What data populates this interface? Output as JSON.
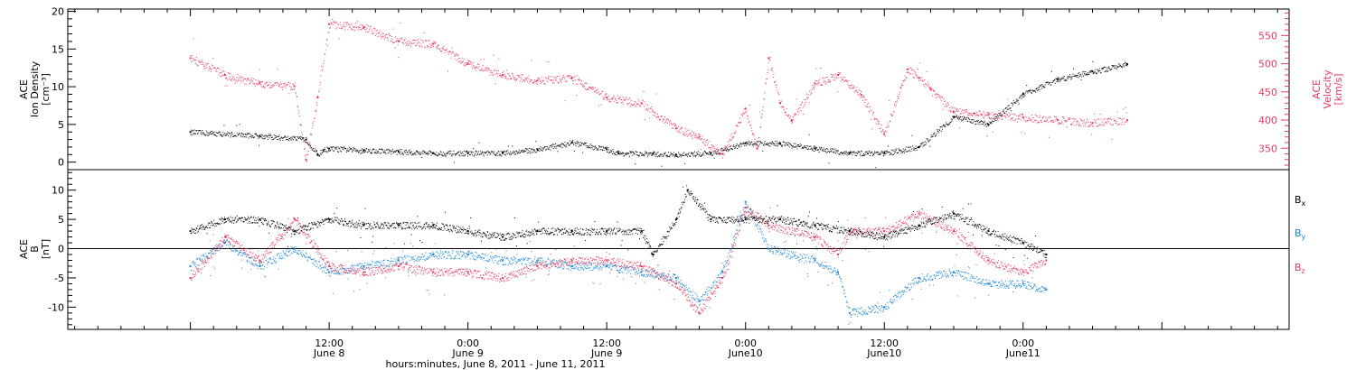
{
  "colors": {
    "density": "#000000",
    "velocity": "#e8395f",
    "bx": "#000000",
    "by": "#1a86d6",
    "bz": "#e8395f",
    "axis": "#000000"
  },
  "chart_data": [
    {
      "type": "scatter",
      "panel": "top",
      "left_axis": {
        "label_lines": [
          "ACE",
          "Ion Density",
          "[cm⁻³]"
        ],
        "ylim": [
          -1,
          20.3
        ],
        "ticks": [
          0,
          5,
          10,
          15,
          20
        ],
        "tick_labels": [
          "0",
          "5",
          "10",
          "15",
          "20"
        ]
      },
      "right_axis": {
        "label_lines": [
          "ACE",
          "Velocity",
          "[km/s]"
        ],
        "ylim": [
          312,
          597
        ],
        "ticks": [
          350,
          400,
          450,
          500,
          550
        ],
        "tick_labels": [
          "350",
          "400",
          "450",
          "500",
          "550"
        ]
      },
      "series": [
        {
          "key": "density",
          "axis": "left",
          "x": [
            0,
            6,
            10,
            11,
            11.5,
            12,
            15,
            18,
            21,
            24,
            27,
            30,
            33,
            36,
            37,
            40,
            42,
            45,
            48,
            51,
            54,
            57,
            60,
            63,
            66,
            69,
            72,
            75,
            78,
            81
          ],
          "values": [
            4,
            3.5,
            3,
            1,
            1.6,
            1.8,
            1.6,
            1.4,
            1.2,
            1.2,
            1.2,
            1.7,
            2.6,
            1.7,
            1.2,
            1.1,
            1.0,
            1.2,
            2.5,
            2.5,
            1.8,
            1.2,
            1.2,
            2,
            6,
            5,
            9,
            11,
            12,
            13
          ]
        },
        {
          "key": "velocity",
          "axis": "right",
          "x": [
            0,
            3,
            6,
            9,
            10,
            11,
            12,
            15,
            18,
            21,
            24,
            27,
            30,
            33,
            36,
            39,
            42,
            44,
            46,
            48,
            49,
            50,
            51,
            52,
            54,
            56,
            58,
            60,
            62,
            63,
            64,
            66,
            69,
            72,
            75,
            78,
            81
          ],
          "values": [
            510,
            480,
            465,
            460,
            330,
            440,
            570,
            565,
            540,
            535,
            500,
            480,
            470,
            475,
            440,
            430,
            385,
            370,
            340,
            420,
            350,
            510,
            430,
            400,
            465,
            480,
            445,
            375,
            490,
            475,
            455,
            415,
            410,
            405,
            400,
            395,
            400
          ]
        }
      ]
    },
    {
      "type": "scatter",
      "panel": "bottom",
      "left_axis": {
        "label_lines": [
          "ACE",
          "B",
          "[nT]"
        ],
        "ylim": [
          -13.8,
          13.5
        ],
        "ticks": [
          -10,
          -5,
          0,
          5,
          10
        ],
        "tick_labels": [
          "-10",
          "-5",
          "0",
          "5",
          "10"
        ]
      },
      "x_axis": {
        "range_hours": [
          -10.6,
          95
        ],
        "major_ticks": [
          {
            "x": 12,
            "time": "12:00",
            "date": "June 8"
          },
          {
            "x": 24,
            "time": "0:00",
            "date": "June 9"
          },
          {
            "x": 36,
            "time": "12:00",
            "date": "June 9"
          },
          {
            "x": 48,
            "time": "0:00",
            "date": "June10"
          },
          {
            "x": 60,
            "time": "12:00",
            "date": "June10"
          },
          {
            "x": 72,
            "time": "0:00",
            "date": "June11"
          }
        ],
        "title": "hours:minutes, June  8, 2011 - June 11, 2011"
      },
      "series": [
        {
          "key": "bx",
          "legend": "B",
          "sub": "x",
          "x": [
            0,
            3,
            6,
            9,
            12,
            15,
            18,
            21,
            24,
            27,
            30,
            33,
            36,
            39,
            40,
            42,
            43,
            45,
            48,
            51,
            54,
            57,
            60,
            63,
            66,
            69,
            72,
            74
          ],
          "values": [
            3,
            5,
            5,
            3,
            5,
            4,
            4,
            4,
            3,
            2,
            3,
            3,
            3,
            3,
            -1,
            5,
            10,
            5,
            5,
            5,
            4,
            3,
            2,
            4,
            6,
            3,
            1,
            -1
          ]
        },
        {
          "key": "by",
          "legend": "B",
          "sub": "y",
          "x": [
            0,
            3,
            6,
            9,
            12,
            15,
            18,
            21,
            24,
            27,
            30,
            33,
            36,
            39,
            42,
            44,
            46,
            48,
            50,
            54,
            56,
            57,
            60,
            63,
            66,
            69,
            72,
            74
          ],
          "values": [
            -3,
            1,
            -3,
            0,
            -4,
            -3,
            -2,
            -1,
            -1,
            -2,
            -2,
            -3,
            -3,
            -4,
            -5,
            -9,
            -4,
            8,
            0,
            -2,
            -4,
            -11,
            -10,
            -5,
            -4,
            -6,
            -6,
            -7
          ]
        },
        {
          "key": "bz",
          "legend": "B",
          "sub": "z",
          "x": [
            0,
            3,
            6,
            9,
            12,
            15,
            18,
            21,
            24,
            27,
            30,
            33,
            36,
            39,
            42,
            44,
            46,
            48,
            50,
            54,
            56,
            57,
            60,
            63,
            66,
            69,
            72,
            74
          ],
          "values": [
            -5,
            2,
            -2,
            5,
            -3,
            -4,
            -3,
            -4,
            -4,
            -5,
            -3,
            -2,
            -2,
            -3,
            -6,
            -11,
            -5,
            7,
            4,
            2,
            -1,
            3,
            3,
            6,
            3,
            -2,
            -4,
            -2
          ]
        }
      ]
    }
  ]
}
